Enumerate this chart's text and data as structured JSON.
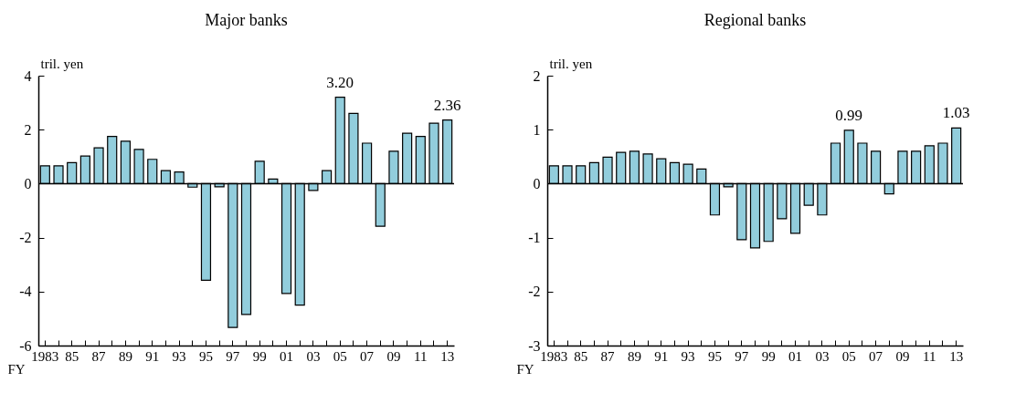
{
  "chart_data": [
    {
      "type": "bar",
      "title": "Major banks",
      "ylabel": "tril. yen",
      "xlabel": "FY",
      "categories": [
        "1983",
        null,
        "85",
        null,
        "87",
        null,
        "89",
        null,
        "91",
        null,
        "93",
        null,
        "95",
        null,
        "97",
        null,
        "99",
        null,
        "01",
        null,
        "03",
        null,
        "05",
        null,
        "07",
        null,
        "09",
        null,
        "11",
        null,
        "13"
      ],
      "values": [
        0.66,
        0.66,
        0.78,
        1.02,
        1.33,
        1.75,
        1.57,
        1.27,
        0.9,
        0.48,
        0.43,
        -0.13,
        -3.58,
        -0.12,
        -5.33,
        -4.85,
        0.83,
        0.17,
        -4.07,
        -4.5,
        -0.25,
        0.48,
        3.2,
        2.6,
        1.5,
        -1.58,
        1.2,
        1.87,
        1.75,
        2.24,
        2.36
      ],
      "value_labels": [
        null,
        null,
        null,
        null,
        null,
        null,
        null,
        null,
        null,
        null,
        null,
        null,
        null,
        null,
        null,
        null,
        null,
        null,
        null,
        null,
        null,
        null,
        "3.20",
        null,
        null,
        null,
        null,
        null,
        null,
        null,
        "2.36"
      ],
      "color": "#92cddc",
      "ylim": [
        -6,
        4
      ],
      "yticks": [
        -6,
        -4,
        -2,
        0,
        2,
        4
      ],
      "grid": false,
      "ref_lines": [
        {
          "axis": "y",
          "value": 0
        }
      ]
    },
    {
      "type": "bar",
      "title": "Regional banks",
      "ylabel": "tril. yen",
      "xlabel": "FY",
      "categories": [
        "1983",
        null,
        "85",
        null,
        "87",
        null,
        "89",
        null,
        "91",
        null,
        "93",
        null,
        "95",
        null,
        "97",
        null,
        "99",
        null,
        "01",
        null,
        "03",
        null,
        "05",
        null,
        "07",
        null,
        "09",
        null,
        "11",
        null,
        "13"
      ],
      "values": [
        0.33,
        0.33,
        0.33,
        0.39,
        0.49,
        0.58,
        0.6,
        0.55,
        0.46,
        0.39,
        0.36,
        0.27,
        -0.58,
        -0.06,
        -1.04,
        -1.19,
        -1.07,
        -0.65,
        -0.92,
        -0.4,
        -0.58,
        0.75,
        0.99,
        0.75,
        0.6,
        -0.19,
        0.6,
        0.6,
        0.7,
        0.75,
        1.03
      ],
      "value_labels": [
        null,
        null,
        null,
        null,
        null,
        null,
        null,
        null,
        null,
        null,
        null,
        null,
        null,
        null,
        null,
        null,
        null,
        null,
        null,
        null,
        null,
        null,
        "0.99",
        null,
        null,
        null,
        null,
        null,
        null,
        null,
        "1.03"
      ],
      "color": "#92cddc",
      "ylim": [
        -3,
        2
      ],
      "yticks": [
        -3,
        -2,
        -1,
        0,
        1,
        2
      ],
      "grid": false,
      "ref_lines": [
        {
          "axis": "y",
          "value": 0
        }
      ]
    }
  ]
}
